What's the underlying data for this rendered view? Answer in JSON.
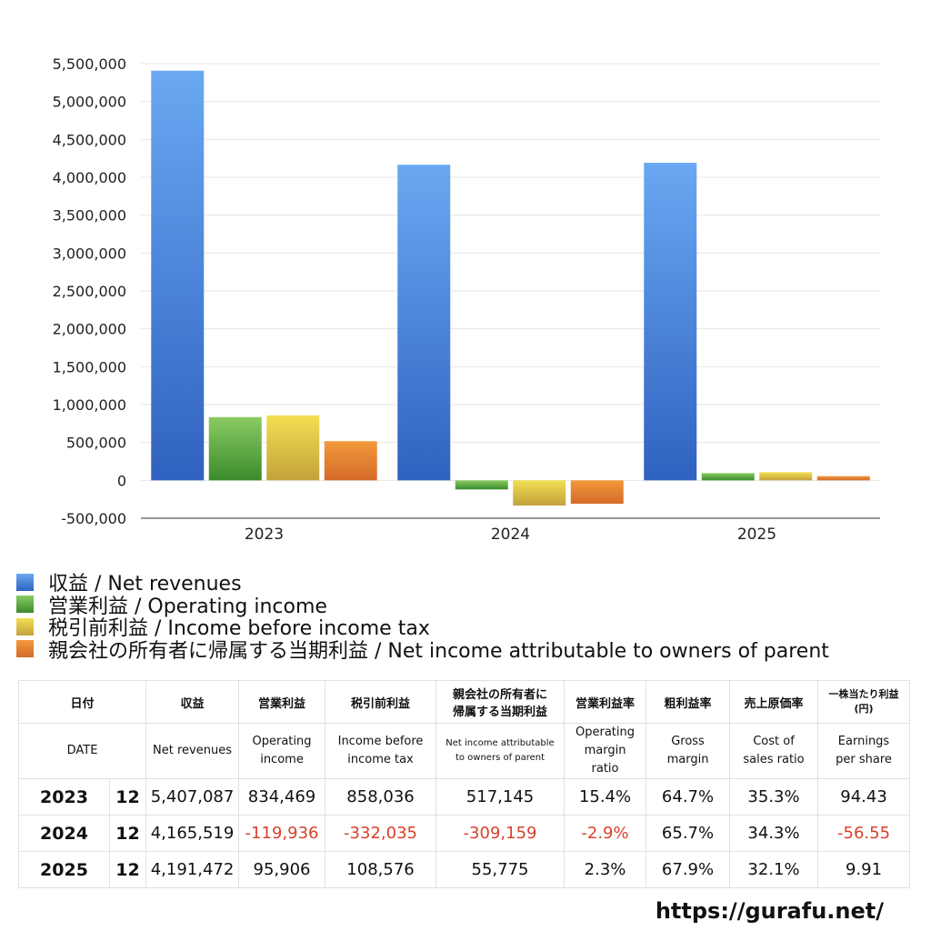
{
  "colors": {
    "net_revenues": [
      "#6aa8f2",
      "#2f62c0"
    ],
    "operating_income": [
      "#8acb62",
      "#3a8a2c"
    ],
    "income_before_tax": [
      "#f2df52",
      "#c2a23c"
    ],
    "net_income_parent": [
      "#f29a3a",
      "#d46a2a"
    ],
    "negative": "#d9412c",
    "grid": "#e6e6e6",
    "axis": "#333333"
  },
  "chart_data": {
    "type": "bar",
    "categories": [
      "2023",
      "2024",
      "2025"
    ],
    "series": [
      {
        "name": "収益 / Net revenues",
        "key": "net_revenues",
        "values": [
          5407087,
          4165519,
          4191472
        ]
      },
      {
        "name": "営業利益 / Operating income",
        "key": "operating_income",
        "values": [
          834469,
          -119936,
          95906
        ]
      },
      {
        "name": "税引前利益 / Income before income tax",
        "key": "income_before_tax",
        "values": [
          858036,
          -332035,
          108576
        ]
      },
      {
        "name": "親会社の所有者に帰属する当期利益 / Net income attributable to owners of parent",
        "key": "net_income_parent",
        "values": [
          517145,
          -309159,
          55775
        ]
      }
    ],
    "ylim": [
      -500000,
      5500000
    ],
    "yticks": [
      5500000,
      5000000,
      4500000,
      4000000,
      3500000,
      3000000,
      2500000,
      2000000,
      1500000,
      1000000,
      500000,
      0,
      -500000
    ],
    "ytick_labels": [
      "5,500,000",
      "5,000,000",
      "4,500,000",
      "4,000,000",
      "3,500,000",
      "3,000,000",
      "2,500,000",
      "2,000,000",
      "1,500,000",
      "1,000,000",
      "500,000",
      "0",
      "-500,000"
    ],
    "grid": true,
    "legend_position": "bottom-left",
    "title": "",
    "xlabel": "",
    "ylabel": ""
  },
  "legend": [
    "収益 / Net revenues",
    "営業利益 / Operating income",
    "税引前利益 / Income before income tax",
    "親会社の所有者に帰属する当期利益 / Net income attributable to owners of parent"
  ],
  "table": {
    "header_jp": {
      "date": "日付",
      "revenues": "収益",
      "operating_income": "営業利益",
      "pretax": "税引前利益",
      "net_income_l1": "親会社の所有者に",
      "net_income_l2": "帰属する当期利益",
      "op_margin": "営業利益率",
      "gross_margin": "粗利益率",
      "cost_ratio": "売上原価率",
      "eps_l1": "一株当たり利益",
      "eps_l2": "(円)"
    },
    "header_en": {
      "date": "DATE",
      "revenues": "Net revenues",
      "operating_income_l1": "Operating",
      "operating_income_l2": "income",
      "pretax_l1": "Income before",
      "pretax_l2": "income tax",
      "net_income_l1": "Net income attributable",
      "net_income_l2": "to owners of parent",
      "op_margin_l1": "Operating",
      "op_margin_l2": "margin",
      "op_margin_l3": "ratio",
      "gross_margin_l1": "Gross",
      "gross_margin_l2": "margin",
      "cost_ratio_l1": "Cost of",
      "cost_ratio_l2": "sales ratio",
      "eps_l1": "Earnings",
      "eps_l2": "per share"
    },
    "rows": [
      {
        "year": "2023",
        "month": "12",
        "revenues": "5,407,087",
        "operating_income": "834,469",
        "pretax": "858,036",
        "net_income": "517,145",
        "op_margin": "15.4%",
        "gross_margin": "64.7%",
        "cost_ratio": "35.3%",
        "eps": "94.43"
      },
      {
        "year": "2024",
        "month": "12",
        "revenues": "4,165,519",
        "operating_income": "-119,936",
        "pretax": "-332,035",
        "net_income": "-309,159",
        "op_margin": "-2.9%",
        "gross_margin": "65.7%",
        "cost_ratio": "34.3%",
        "eps": "-56.55"
      },
      {
        "year": "2025",
        "month": "12",
        "revenues": "4,191,472",
        "operating_income": "95,906",
        "pretax": "108,576",
        "net_income": "55,775",
        "op_margin": "2.3%",
        "gross_margin": "67.9%",
        "cost_ratio": "32.1%",
        "eps": "9.91"
      }
    ]
  },
  "footer": {
    "url": "https://gurafu.net/"
  }
}
